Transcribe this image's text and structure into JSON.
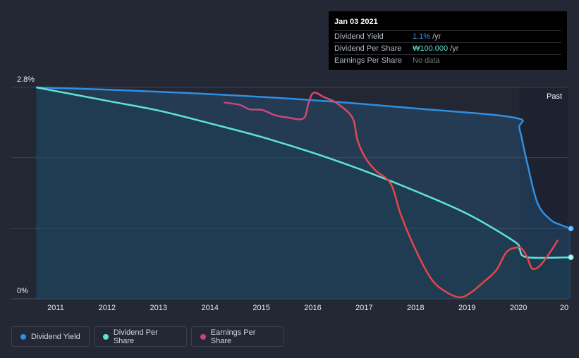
{
  "chart_data": {
    "type": "line",
    "x_tick_labels": [
      "2011",
      "2012",
      "2013",
      "2014",
      "2015",
      "2016",
      "2017",
      "2018",
      "2019",
      "2020",
      "20"
    ],
    "y_tick_labels": [
      "2.8%",
      "0%"
    ],
    "ylim": [
      0,
      2.8
    ],
    "past_label": "Past",
    "series": [
      {
        "name": "Dividend Yield",
        "color": "#2e8fe3",
        "points": [
          [
            2010.6,
            2.8
          ],
          [
            2012.0,
            2.77
          ],
          [
            2014.0,
            2.71
          ],
          [
            2016.0,
            2.63
          ],
          [
            2018.0,
            2.52
          ],
          [
            2019.9,
            2.4
          ],
          [
            2020.0,
            2.25
          ],
          [
            2020.15,
            1.8
          ],
          [
            2020.35,
            1.27
          ],
          [
            2020.6,
            1.05
          ],
          [
            2020.8,
            0.98
          ],
          [
            2021.0,
            0.93
          ]
        ]
      },
      {
        "name": "Dividend Per Share",
        "color": "#5fe3d6",
        "points": [
          [
            2010.6,
            2.8
          ],
          [
            2012.0,
            2.62
          ],
          [
            2013.0,
            2.49
          ],
          [
            2014.0,
            2.32
          ],
          [
            2015.0,
            2.14
          ],
          [
            2016.0,
            1.93
          ],
          [
            2017.0,
            1.69
          ],
          [
            2018.0,
            1.42
          ],
          [
            2019.0,
            1.12
          ],
          [
            2019.9,
            0.76
          ],
          [
            2020.0,
            0.66
          ],
          [
            2020.15,
            0.55
          ],
          [
            2021.0,
            0.55
          ]
        ]
      },
      {
        "name": "Earnings Per Share",
        "color_start": "#c2438b",
        "color_end": "#e84545",
        "points": [
          [
            2014.25,
            2.6
          ],
          [
            2014.55,
            2.57
          ],
          [
            2014.75,
            2.51
          ],
          [
            2015.0,
            2.5
          ],
          [
            2015.25,
            2.43
          ],
          [
            2015.5,
            2.4
          ],
          [
            2015.8,
            2.39
          ],
          [
            2015.9,
            2.6
          ],
          [
            2016.0,
            2.73
          ],
          [
            2016.2,
            2.67
          ],
          [
            2016.45,
            2.59
          ],
          [
            2016.75,
            2.4
          ],
          [
            2016.85,
            2.1
          ],
          [
            2017.0,
            1.87
          ],
          [
            2017.2,
            1.7
          ],
          [
            2017.5,
            1.52
          ],
          [
            2017.7,
            1.1
          ],
          [
            2018.0,
            0.62
          ],
          [
            2018.3,
            0.25
          ],
          [
            2018.6,
            0.08
          ],
          [
            2018.85,
            0.02
          ],
          [
            2019.05,
            0.08
          ],
          [
            2019.3,
            0.22
          ],
          [
            2019.55,
            0.38
          ],
          [
            2019.75,
            0.62
          ],
          [
            2019.95,
            0.68
          ],
          [
            2020.05,
            0.66
          ],
          [
            2020.15,
            0.55
          ],
          [
            2020.25,
            0.4
          ],
          [
            2020.4,
            0.44
          ],
          [
            2020.6,
            0.62
          ],
          [
            2020.75,
            0.78
          ]
        ]
      }
    ]
  },
  "tooltip": {
    "date": "Jan 03 2021",
    "rows": [
      {
        "label": "Dividend Yield",
        "value": "1.1%",
        "unit": "/yr",
        "color": "#2e8fe3"
      },
      {
        "label": "Dividend Per Share",
        "value": "₩100.000",
        "unit": "/yr",
        "color": "#5fe3d6"
      },
      {
        "label": "Earnings Per Share",
        "value": "No data",
        "unit": "",
        "color": "#737985"
      }
    ]
  },
  "legend": [
    {
      "label": "Dividend Yield",
      "color": "#2e8fe3"
    },
    {
      "label": "Dividend Per Share",
      "color": "#5fe3d6"
    },
    {
      "label": "Earnings Per Share",
      "color": "#c2438b"
    }
  ]
}
